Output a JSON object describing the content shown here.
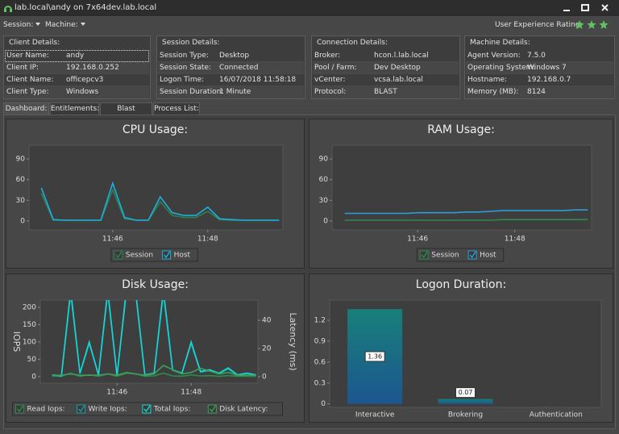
{
  "window": {
    "title": "lab.local\\andy on 7x64dev.lab.local"
  },
  "menu": [
    "Session:",
    "Machine:"
  ],
  "rating": {
    "label": "User Experience Rating:",
    "value": 3
  },
  "details": [
    {
      "title": "Client Details:",
      "rows": [
        [
          "User Name:",
          "andy"
        ],
        [
          "Client IP:",
          "192.168.0.252"
        ],
        [
          "Client Name:",
          "officepcv3"
        ],
        [
          "Client Type:",
          "Windows"
        ]
      ]
    },
    {
      "title": "Session Details:",
      "rows": [
        [
          "Session Type:",
          "Desktop"
        ],
        [
          "Session State:",
          "Connected"
        ],
        [
          "Logon Time:",
          "16/07/2018 11:58:18"
        ],
        [
          "Session Duration:",
          "1 Minute"
        ]
      ]
    },
    {
      "title": "Connection Details:",
      "rows": [
        [
          "Broker:",
          "hcon.l.lab.local"
        ],
        [
          "Pool / Farm:",
          "Dev Desktop"
        ],
        [
          "vCenter:",
          "vcsa.lab.local"
        ],
        [
          "Protocol:",
          "BLAST"
        ]
      ]
    },
    {
      "title": "Machine Details:",
      "rows": [
        [
          "Agent Version:",
          "7.5.0"
        ],
        [
          "Operating System:",
          "Windows 7"
        ],
        [
          "Hostname:",
          "192.168.0.7"
        ],
        [
          "Memory (MB):",
          "8124"
        ]
      ]
    }
  ],
  "tabs": [
    "Dashboard:",
    "Entitlements:",
    "Blast Protocol:",
    "Process List:"
  ],
  "chart_data": [
    {
      "type": "line",
      "title": "CPU Usage:",
      "x": [
        704.5,
        704.75,
        705,
        705.25,
        705.5,
        705.75,
        706,
        706.25,
        706.5,
        706.75,
        707,
        707.25,
        707.5,
        707.75,
        708,
        708.25,
        708.5,
        708.75,
        709,
        709.25,
        709.5
      ],
      "xlim": [
        704.24,
        709.58
      ],
      "xticks": [
        {
          "value": 706,
          "label": "11:46"
        },
        {
          "value": 708,
          "label": "11:48"
        }
      ],
      "ylim": [
        -13,
        110
      ],
      "yticks": [
        0,
        30,
        60,
        90
      ],
      "series": [
        {
          "name": "Session",
          "color": "#2f7f52",
          "values": [
            40,
            1,
            1,
            1,
            1,
            1,
            45,
            3,
            1,
            1,
            28,
            8,
            5,
            5,
            14,
            2,
            1,
            1,
            1,
            1,
            1
          ]
        },
        {
          "name": "Host",
          "color": "#1bb0da",
          "values": [
            48,
            2,
            1,
            1,
            1,
            1,
            55,
            5,
            1,
            1,
            35,
            12,
            8,
            8,
            20,
            3,
            2,
            1,
            1,
            1,
            1
          ]
        }
      ]
    },
    {
      "type": "line",
      "title": "RAM Usage:",
      "x": [
        704.5,
        704.75,
        705,
        705.25,
        705.5,
        705.75,
        706,
        706.25,
        706.5,
        706.75,
        707,
        707.25,
        707.5,
        707.75,
        708,
        708.25,
        708.5,
        708.75,
        709,
        709.25,
        709.5
      ],
      "xlim": [
        704.24,
        709.58
      ],
      "xticks": [
        {
          "value": 706,
          "label": "11:46"
        },
        {
          "value": 708,
          "label": "11:48"
        }
      ],
      "ylim": [
        -13,
        110
      ],
      "yticks": [
        0,
        30,
        60,
        90
      ],
      "series": [
        {
          "name": "Session",
          "color": "#2f8a4e",
          "values": [
            1,
            1,
            1,
            1,
            1,
            1,
            1,
            1,
            1,
            1,
            1,
            1,
            1,
            2,
            2,
            2,
            2,
            2,
            2,
            2,
            2
          ]
        },
        {
          "name": "Host",
          "color": "#2a9fd8",
          "values": [
            11,
            11,
            11,
            11,
            11,
            11,
            12,
            12,
            12,
            12,
            13,
            13,
            14,
            15,
            15,
            15,
            15,
            15,
            15,
            16,
            16
          ]
        }
      ]
    },
    {
      "type": "line",
      "title": "Disk Usage:",
      "y_label": "IOPS",
      "y2_label": "Latency (ms)",
      "x": [
        704.25,
        704.5,
        704.75,
        705,
        705.25,
        705.5,
        705.75,
        706,
        706.25,
        706.5,
        706.75,
        707,
        707.25,
        707.5,
        707.75,
        708,
        708.25,
        708.5,
        708.75,
        709,
        709.25,
        709.5,
        709.75
      ],
      "xlim": [
        703.93,
        709.8
      ],
      "xticks": [
        {
          "value": 706,
          "label": "11:46"
        },
        {
          "value": 708,
          "label": "11:48"
        }
      ],
      "ylim": [
        -19,
        221
      ],
      "yticks": [
        0,
        50,
        100,
        150,
        200
      ],
      "y2lim": [
        -4.6,
        54.3
      ],
      "y2ticks": [
        0,
        20,
        40
      ],
      "series": [
        {
          "name": "Read Iops:",
          "color": "#2f8a4e",
          "values": [
            2,
            1,
            10,
            1,
            5,
            1,
            8,
            1,
            10,
            8,
            1,
            2,
            10,
            2,
            1,
            5,
            2,
            3,
            1,
            3,
            1,
            1,
            1
          ]
        },
        {
          "name": "Write Iops:",
          "color": "#1a9aa0",
          "values": [
            3,
            1,
            240,
            9,
            95,
            4,
            242,
            2,
            240,
            242,
            4,
            8,
            240,
            18,
            9,
            95,
            13,
            17,
            9,
            22,
            4,
            9,
            4
          ]
        },
        {
          "name": "Total Iops:",
          "color": "#19d6d6",
          "values": [
            5,
            2,
            250,
            10,
            100,
            5,
            250,
            3,
            250,
            250,
            5,
            10,
            250,
            20,
            10,
            100,
            15,
            20,
            10,
            25,
            5,
            10,
            5
          ]
        },
        {
          "name": "Disk Latency:",
          "color": "#3aa05a",
          "axis": "y2",
          "values": [
            1,
            1,
            2,
            1,
            1,
            1,
            2,
            1,
            3,
            2,
            1,
            2,
            8,
            5,
            2,
            3,
            6,
            4,
            2,
            3,
            1,
            1,
            1
          ]
        }
      ]
    },
    {
      "type": "bar",
      "title": "Logon Duration:",
      "color": "#17807a",
      "categories": [
        "Interactive",
        "Brokering",
        "Authentication"
      ],
      "values": [
        1.36,
        0.07,
        null
      ],
      "ylim": [
        -0.05,
        1.49
      ],
      "yticks": [
        0,
        0.3,
        0.6,
        0.9,
        1.2
      ]
    }
  ]
}
